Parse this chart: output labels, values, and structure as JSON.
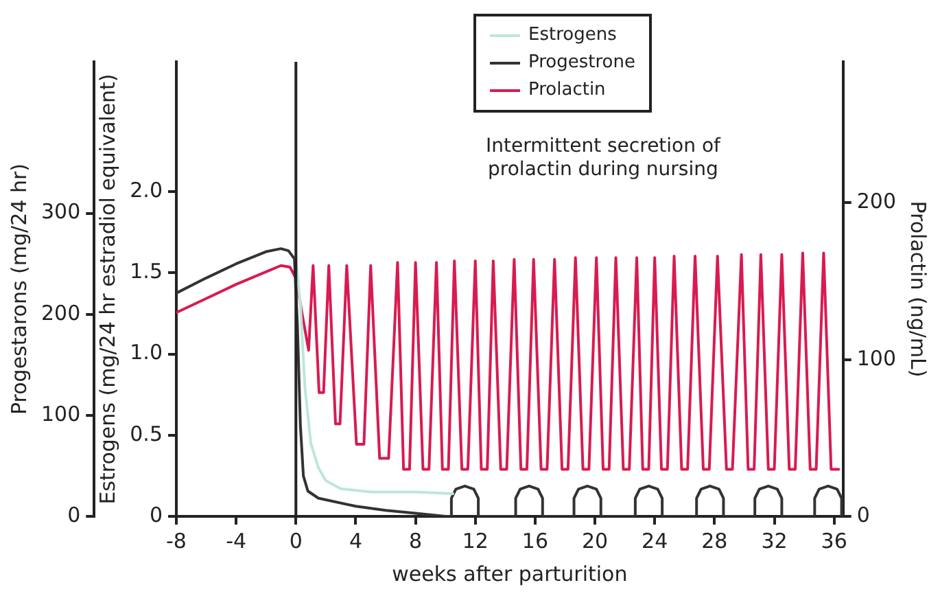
{
  "chart_data": {
    "type": "line",
    "xlabel": "weeks after parturition",
    "ylabel": "Estrogens (mg/24 hr estradiol equivalent)",
    "y2label": "Prolactin (ng/mL)",
    "y3label": "Progestarons (mg/24 hr)",
    "xlim": [
      -8,
      36.6
    ],
    "xticks": [
      -8,
      -4,
      0,
      4,
      8,
      12,
      16,
      20,
      24,
      28,
      32,
      36
    ],
    "ylim": [
      0,
      2.8
    ],
    "yticks": [
      0,
      0.5,
      {
        "value": 1,
        "label": "1.0"
      },
      1.5,
      {
        "value": 2,
        "label": "2.0"
      }
    ],
    "y2lim": [
      0,
      290
    ],
    "y2ticks": [
      0,
      100,
      200
    ],
    "y3lim": [
      0,
      450
    ],
    "y3ticks": [
      0,
      100,
      200,
      300
    ],
    "grid": false,
    "legend": "top",
    "annotations": [
      "Intermittent secretion of prolactin during nursing"
    ],
    "ref_lines": [
      {
        "axis": "x",
        "value": 0,
        "color": "#222222"
      }
    ],
    "series": [
      {
        "name": "Estrogens",
        "color": "#bde6dc",
        "axis": "y",
        "x": [
          0,
          0.3,
          0.6,
          1,
          1.5,
          2,
          3,
          5,
          8,
          10.5
        ],
        "values": [
          1.6,
          1.3,
          0.8,
          0.45,
          0.3,
          0.22,
          0.17,
          0.15,
          0.15,
          0.14
        ]
      },
      {
        "name": "Progestrone",
        "color": "#333333",
        "axis": "y3",
        "x": [
          -8,
          -6,
          -4,
          -2,
          -1,
          -0.5,
          -0.1,
          0.1,
          0.3,
          0.5,
          0.8,
          1.5,
          4,
          6,
          8,
          10,
          10.4,
          10.4,
          10.7,
          11.3,
          11.9,
          12.2,
          12.2,
          14.7,
          14.7,
          15.0,
          15.6,
          16.2,
          16.5,
          16.5,
          18.6,
          18.6,
          18.9,
          19.5,
          20.1,
          20.4,
          20.4,
          22.7,
          22.7,
          23.0,
          23.6,
          24.2,
          24.5,
          24.5,
          26.8,
          26.8,
          27.1,
          27.7,
          28.3,
          28.6,
          28.6,
          30.7,
          30.7,
          31.0,
          31.6,
          32.2,
          32.5,
          32.5,
          34.7,
          34.7,
          35.0,
          35.6,
          36.2,
          36.5,
          36.5
        ],
        "values": [
          221,
          236,
          250,
          262,
          265,
          263,
          255,
          190,
          90,
          40,
          25,
          18,
          10,
          6,
          3,
          0,
          0,
          18,
          27,
          30,
          27,
          18,
          0,
          0,
          18,
          27,
          30,
          27,
          18,
          0,
          0,
          18,
          27,
          30,
          27,
          18,
          0,
          0,
          18,
          27,
          30,
          27,
          18,
          0,
          0,
          18,
          27,
          30,
          27,
          18,
          0,
          0,
          18,
          27,
          30,
          27,
          18,
          0,
          0,
          18,
          27,
          30,
          27,
          18,
          0
        ]
      },
      {
        "name": "Prolactin",
        "color": "#d81b50",
        "axis": "y2",
        "x": [
          -8,
          -6,
          -4,
          -2,
          -1,
          -0.4,
          0,
          0.4,
          0.85,
          1.15,
          1.55,
          1.85,
          2.2,
          2.65,
          2.95,
          3.4,
          4.05,
          4.55,
          5.0,
          5.6,
          6.2,
          6.8,
          7.2,
          7.6,
          8.0,
          8.5,
          8.9,
          9.4,
          9.8,
          10.2,
          10.6,
          11.1,
          11.5,
          12.0,
          12.4,
          12.8,
          13.2,
          13.7,
          14.1,
          14.6,
          15.05,
          15.45,
          15.9,
          16.4,
          16.8,
          17.3,
          17.8,
          18.2,
          18.7,
          19.2,
          19.6,
          20.1,
          20.55,
          20.95,
          21.4,
          21.9,
          22.3,
          22.8,
          23.2,
          23.6,
          24.0,
          24.45,
          24.85,
          25.3,
          25.8,
          26.2,
          26.7,
          27.25,
          27.65,
          28.2,
          28.8,
          29.2,
          29.8,
          30.25,
          30.65,
          31.1,
          31.6,
          32.0,
          32.5,
          33.0,
          33.4,
          33.9,
          34.4,
          34.8,
          35.3,
          35.8,
          36.3
        ],
        "values": [
          130,
          139,
          148,
          156,
          160,
          159,
          152,
          130,
          106,
          160,
          79,
          79,
          160,
          59,
          59,
          160,
          46,
          46,
          160,
          37,
          37,
          162,
          30,
          30,
          162,
          30,
          30,
          162,
          30,
          30,
          163,
          30,
          30,
          163,
          30,
          30,
          163,
          30,
          30,
          164,
          30,
          30,
          164,
          30,
          30,
          164,
          30,
          30,
          165,
          30,
          30,
          165,
          30,
          30,
          165,
          30,
          30,
          165,
          30,
          30,
          165,
          30,
          30,
          166,
          30,
          30,
          166,
          30,
          30,
          166,
          30,
          30,
          167,
          30,
          30,
          167,
          30,
          30,
          167,
          30,
          30,
          168,
          30,
          30,
          168,
          30,
          30
        ]
      }
    ]
  }
}
